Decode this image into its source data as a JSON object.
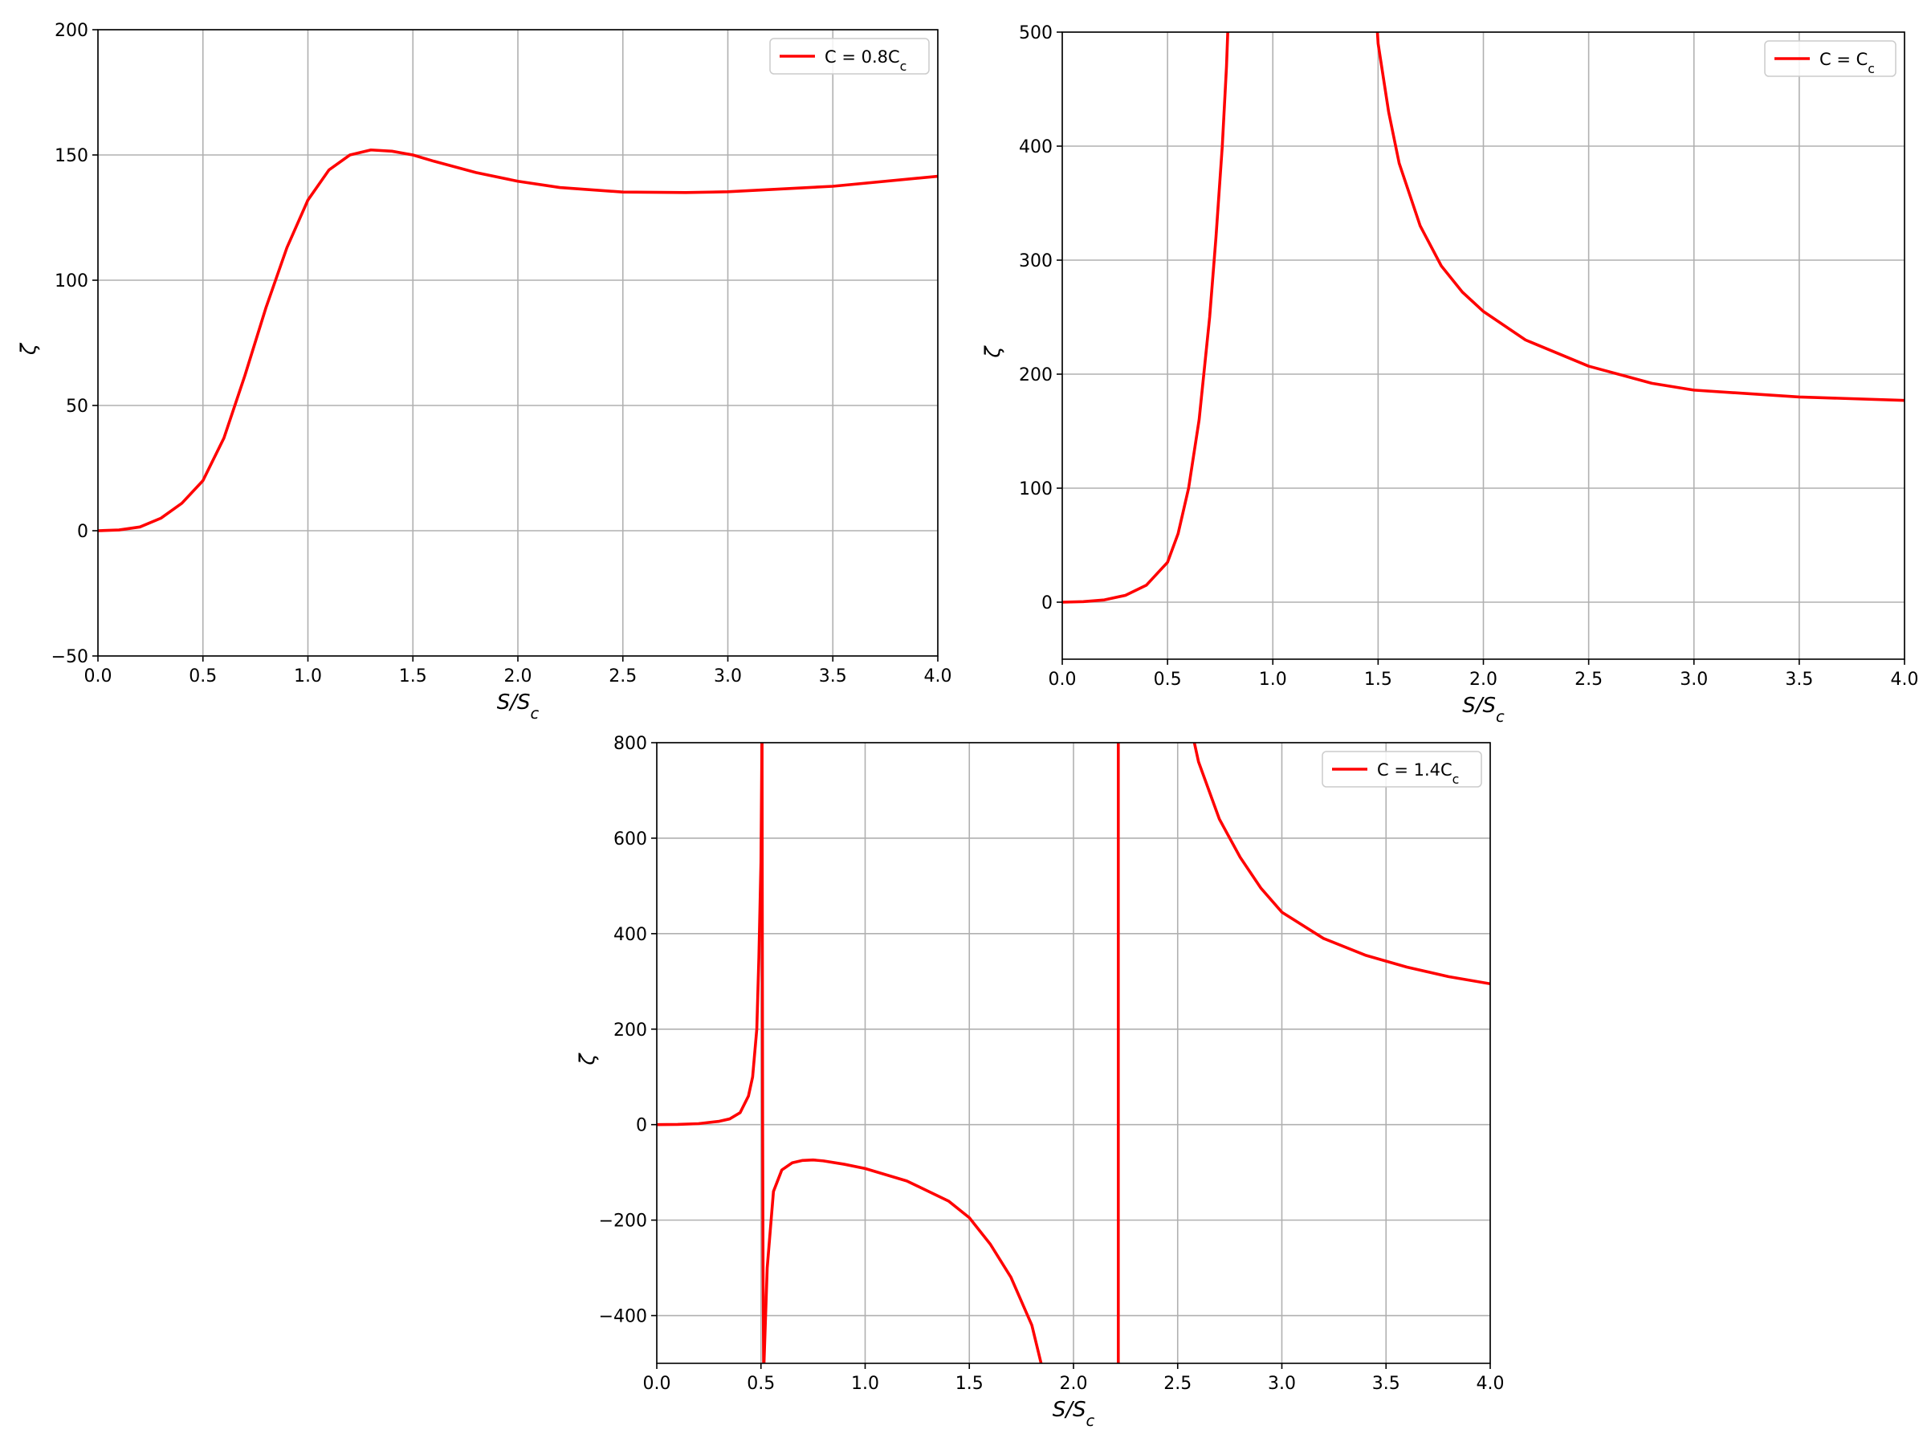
{
  "chart_data": [
    {
      "type": "line",
      "xlabel": "S/S_c",
      "ylabel": "ζ",
      "xlim": [
        0.0,
        4.0
      ],
      "ylim": [
        -50,
        200
      ],
      "xticks": [
        "0.0",
        "0.5",
        "1.0",
        "1.5",
        "2.0",
        "2.5",
        "3.0",
        "3.5",
        "4.0"
      ],
      "yticks": [
        "−50",
        "0",
        "50",
        "100",
        "150",
        "200"
      ],
      "grid": true,
      "legend_position": "top-right",
      "color": "#ff0000",
      "series": [
        {
          "name": "C = 0.8C_c",
          "x": [
            0.0,
            0.1,
            0.2,
            0.3,
            0.4,
            0.5,
            0.6,
            0.7,
            0.8,
            0.9,
            1.0,
            1.1,
            1.2,
            1.3,
            1.4,
            1.5,
            1.6,
            1.8,
            2.0,
            2.2,
            2.5,
            2.8,
            3.0,
            3.5,
            4.0
          ],
          "y": [
            0,
            0.3,
            1.5,
            5,
            11,
            20,
            37,
            62,
            89,
            113,
            132,
            144,
            150,
            152,
            151.5,
            150,
            147.5,
            143,
            139.5,
            137,
            135.2,
            135,
            135.3,
            137.5,
            141.5
          ]
        }
      ]
    },
    {
      "type": "line",
      "xlabel": "S/S_c",
      "ylabel": "ζ",
      "xlim": [
        0.0,
        4.0
      ],
      "ylim": [
        -50,
        500
      ],
      "xticks": [
        "0.0",
        "0.5",
        "1.0",
        "1.5",
        "2.0",
        "2.5",
        "3.0",
        "3.5",
        "4.0"
      ],
      "yticks": [
        "0",
        "100",
        "200",
        "300",
        "400",
        "500"
      ],
      "grid": true,
      "legend_position": "top-right",
      "color": "#ff0000",
      "series": [
        {
          "name": "C = C_c",
          "segments": [
            {
              "x": [
                0.0,
                0.1,
                0.2,
                0.3,
                0.4,
                0.5,
                0.55,
                0.6,
                0.65,
                0.7,
                0.73,
                0.76,
                0.78,
                0.79
              ],
              "y": [
                0,
                0.5,
                2,
                6,
                15,
                35,
                60,
                100,
                160,
                250,
                320,
                400,
                470,
                520
              ]
            },
            {
              "x": [
                1.49,
                1.5,
                1.55,
                1.6,
                1.7,
                1.8,
                1.9,
                2.0,
                2.2,
                2.5,
                2.8,
                3.0,
                3.5,
                4.0
              ],
              "y": [
                520,
                490,
                430,
                385,
                330,
                295,
                272,
                255,
                230,
                207,
                192,
                186,
                180,
                177
              ]
            }
          ]
        }
      ]
    },
    {
      "type": "line",
      "xlabel": "S/S_c",
      "ylabel": "ζ",
      "xlim": [
        0.0,
        4.0
      ],
      "ylim": [
        -500,
        800
      ],
      "xticks": [
        "0.0",
        "0.5",
        "1.0",
        "1.5",
        "2.0",
        "2.5",
        "3.0",
        "3.5",
        "4.0"
      ],
      "yticks": [
        "−400",
        "−200",
        "0",
        "200",
        "400",
        "600",
        "800"
      ],
      "grid": true,
      "legend_position": "top-right",
      "color": "#ff0000",
      "series": [
        {
          "name": "C = 1.4C_c",
          "segments": [
            {
              "x": [
                0.0,
                0.1,
                0.2,
                0.3,
                0.35,
                0.4,
                0.44,
                0.46,
                0.48,
                0.49,
                0.5,
                0.505
              ],
              "y": [
                0,
                0.5,
                2,
                7,
                12,
                25,
                60,
                100,
                200,
                350,
                550,
                820
              ]
            },
            {
              "x": [
                0.505,
                0.508,
                0.51,
                0.513
              ],
              "y": [
                820,
                0,
                -300,
                -520
              ]
            },
            {
              "x": [
                0.513,
                0.53,
                0.56,
                0.6,
                0.65,
                0.7,
                0.75,
                0.8,
                0.9,
                1.0,
                1.2,
                1.4,
                1.5,
                1.6,
                1.7,
                1.8,
                1.85
              ],
              "y": [
                -520,
                -300,
                -140,
                -95,
                -80,
                -75,
                -74,
                -76,
                -83,
                -92,
                -118,
                -160,
                -195,
                -250,
                -320,
                -420,
                -510
              ]
            },
            {
              "x": [
                2.215,
                2.215
              ],
              "y": [
                820,
                -520
              ]
            },
            {
              "x": [
                2.57,
                2.6,
                2.7,
                2.8,
                2.9,
                3.0,
                3.2,
                3.4,
                3.6,
                3.8,
                4.0
              ],
              "y": [
                820,
                760,
                640,
                560,
                495,
                445,
                390,
                355,
                330,
                310,
                295
              ]
            }
          ]
        }
      ]
    }
  ]
}
